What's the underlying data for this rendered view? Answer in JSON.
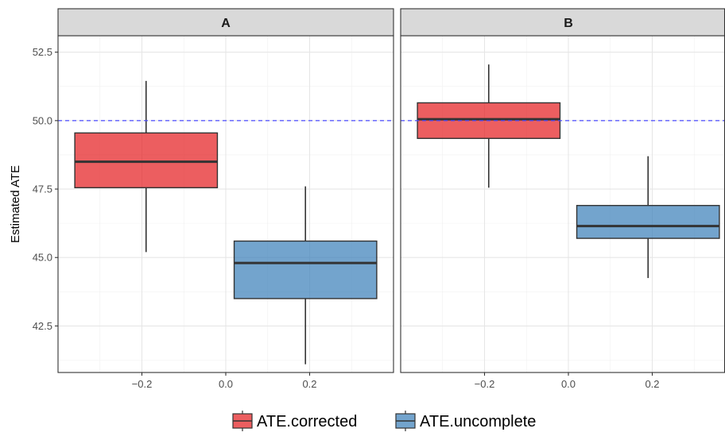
{
  "chart_data": {
    "type": "boxplot",
    "ylabel": "Estimated ATE",
    "xlabel": "",
    "xlim": [
      -0.4,
      0.4
    ],
    "ylim": [
      40.8,
      53.1
    ],
    "x_ticks": [
      -0.2,
      0.0,
      0.2
    ],
    "x_tick_labels": [
      "−0.2",
      "0.0",
      "0.2"
    ],
    "y_ticks": [
      42.5,
      45.0,
      47.5,
      50.0,
      52.5
    ],
    "y_tick_labels": [
      "42.5",
      "45.0",
      "47.5",
      "50.0",
      "52.5"
    ],
    "reference_line": {
      "y": 50.0,
      "style": "dashed",
      "color": "#4a4aff"
    },
    "grid": true,
    "legend_position": "bottom",
    "series": [
      {
        "name": "ATE.corrected",
        "color": "#E41A1C"
      },
      {
        "name": "ATE.uncomplete",
        "color": "#377EB8"
      }
    ],
    "panels": [
      {
        "title": "A",
        "boxes": [
          {
            "series": "ATE.corrected",
            "x_left": -0.36,
            "x_right": -0.02,
            "whisker_x": -0.19,
            "min": 45.2,
            "q1": 47.55,
            "median": 48.5,
            "q3": 49.55,
            "max": 51.45
          },
          {
            "series": "ATE.uncomplete",
            "x_left": 0.02,
            "x_right": 0.36,
            "whisker_x": 0.19,
            "min": 41.1,
            "q1": 43.5,
            "median": 44.8,
            "q3": 45.6,
            "max": 47.6
          }
        ]
      },
      {
        "title": "B",
        "boxes": [
          {
            "series": "ATE.corrected",
            "x_left": -0.36,
            "x_right": -0.02,
            "whisker_x": -0.19,
            "min": 47.55,
            "q1": 49.35,
            "median": 50.05,
            "q3": 50.65,
            "max": 52.05
          },
          {
            "series": "ATE.uncomplete",
            "x_left": 0.02,
            "x_right": 0.36,
            "whisker_x": 0.19,
            "min": 44.25,
            "q1": 45.7,
            "median": 46.15,
            "q3": 46.9,
            "max": 48.7
          }
        ]
      }
    ]
  }
}
